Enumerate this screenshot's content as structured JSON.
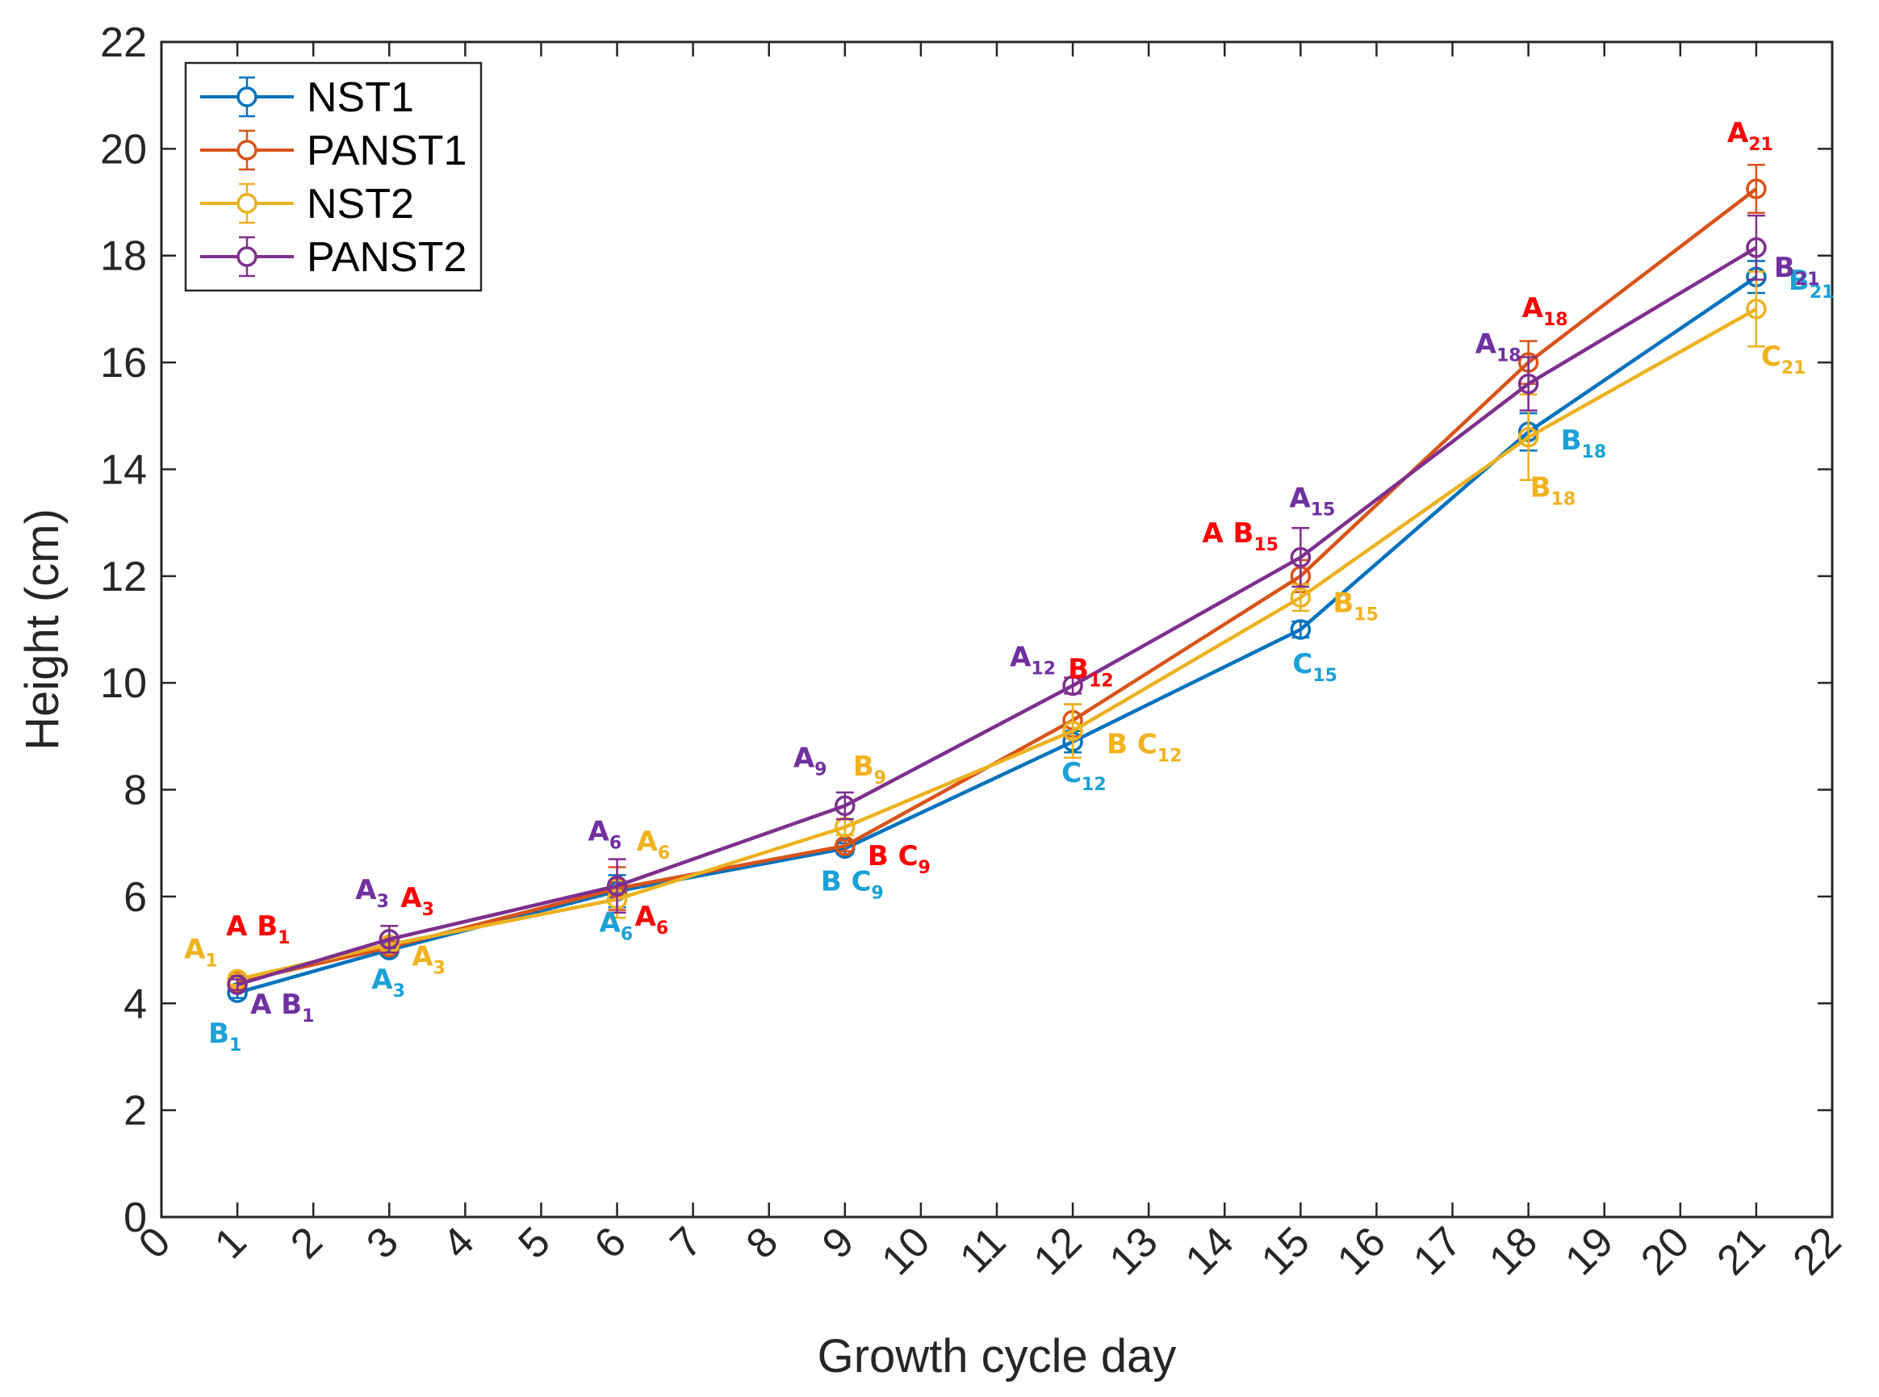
{
  "chart_data": {
    "type": "line",
    "xlabel": "Growth cycle day",
    "ylabel": "Height (cm)",
    "xlim": [
      0,
      22
    ],
    "ylim": [
      0,
      22
    ],
    "x_ticks": [
      "0",
      "1",
      "2",
      "3",
      "4",
      "5",
      "6",
      "7",
      "8",
      "9",
      "10",
      "11",
      "12",
      "13",
      "14",
      "15",
      "16",
      "17",
      "18",
      "19",
      "20",
      "21",
      "22"
    ],
    "y_ticks": [
      "0",
      "2",
      "4",
      "6",
      "8",
      "10",
      "12",
      "14",
      "16",
      "18",
      "20",
      "22"
    ],
    "grid": false,
    "legend_position": "top-left",
    "x": [
      1,
      3,
      6,
      9,
      12,
      15,
      18,
      21
    ],
    "series": [
      {
        "name": "NST1",
        "color": "#0072BD",
        "values": [
          4.2,
          5.0,
          6.1,
          6.9,
          8.9,
          11.0,
          14.7,
          17.6
        ],
        "errors": [
          0.1,
          0.1,
          0.3,
          0.1,
          0.2,
          0.15,
          0.35,
          0.3
        ],
        "letter_color": "#1ba1d6",
        "letters": [
          {
            "main": "B",
            "sub": "1"
          },
          {
            "main": "A",
            "sub": "3"
          },
          {
            "main": "A",
            "sub": "6"
          },
          {
            "main": "B C",
            "sub": "9"
          },
          {
            "main": "C",
            "sub": "12"
          },
          {
            "main": "C",
            "sub": "15"
          },
          {
            "main": "B",
            "sub": "18"
          },
          {
            "main": "B",
            "sub": "21"
          }
        ]
      },
      {
        "name": "PANST1",
        "color": "#D95319",
        "values": [
          4.4,
          5.05,
          6.15,
          6.95,
          9.3,
          12.0,
          16.0,
          19.25
        ],
        "errors": [
          0.1,
          0.1,
          0.4,
          0.1,
          0.3,
          0.3,
          0.4,
          0.45
        ],
        "letter_color": "#ff0000",
        "letters": [
          {
            "main": "A B",
            "sub": "1"
          },
          {
            "main": "A",
            "sub": "3"
          },
          {
            "main": "A",
            "sub": "6"
          },
          {
            "main": "B C",
            "sub": "9"
          },
          {
            "main": "B",
            "sub": "12"
          },
          {
            "main": "A B",
            "sub": "15"
          },
          {
            "main": "A",
            "sub": "18"
          },
          {
            "main": "A",
            "sub": "21"
          }
        ]
      },
      {
        "name": "NST2",
        "color": "#EDB120",
        "values": [
          4.45,
          5.1,
          5.95,
          7.3,
          9.1,
          11.6,
          14.6,
          17.0
        ],
        "errors": [
          0.1,
          0.1,
          0.35,
          0.15,
          0.5,
          0.25,
          0.8,
          0.7
        ],
        "letter_color": "#f0b21e",
        "letters": [
          {
            "main": "A",
            "sub": "1"
          },
          {
            "main": "A",
            "sub": "3"
          },
          {
            "main": "A",
            "sub": "6"
          },
          {
            "main": "B",
            "sub": "9"
          },
          {
            "main": "B C",
            "sub": "12"
          },
          {
            "main": "B",
            "sub": "15"
          },
          {
            "main": "B",
            "sub": "18"
          },
          {
            "main": "C",
            "sub": "21"
          }
        ]
      },
      {
        "name": "PANST2",
        "color": "#7E2F8E",
        "values": [
          4.35,
          5.2,
          6.2,
          7.7,
          9.95,
          12.35,
          15.6,
          18.15
        ],
        "errors": [
          0.1,
          0.25,
          0.5,
          0.25,
          0.15,
          0.55,
          0.5,
          0.6
        ],
        "letter_color": "#7030a0",
        "letters": [
          {
            "main": "A B",
            "sub": "1"
          },
          {
            "main": "A",
            "sub": "3"
          },
          {
            "main": "A",
            "sub": "6"
          },
          {
            "main": "A",
            "sub": "9"
          },
          {
            "main": "A",
            "sub": "12"
          },
          {
            "main": "A",
            "sub": "15"
          },
          {
            "main": "A",
            "sub": "18"
          },
          {
            "main": "B",
            "sub": "21"
          }
        ]
      }
    ]
  }
}
